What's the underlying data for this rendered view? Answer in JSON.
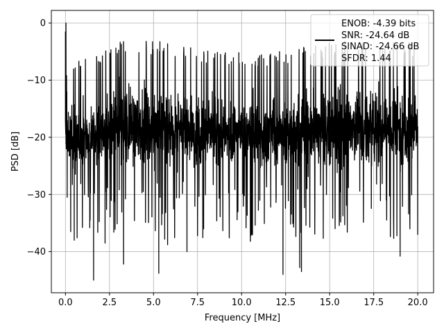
{
  "chart_data": {
    "type": "line",
    "title": "",
    "xlabel": "Frequency [MHz]",
    "ylabel": "PSD [dB]",
    "xlim": [
      -0.8,
      20.9
    ],
    "ylim": [
      -47.2,
      2.2
    ],
    "x_ticks": [
      0.0,
      2.5,
      5.0,
      7.5,
      10.0,
      12.5,
      15.0,
      17.5,
      20.0
    ],
    "x_tick_labels": [
      "0.0",
      "2.5",
      "5.0",
      "7.5",
      "10.0",
      "12.5",
      "15.0",
      "17.5",
      "20.0"
    ],
    "y_ticks": [
      0,
      -10,
      -20,
      -30,
      -40
    ],
    "y_tick_labels": [
      "0",
      "−10",
      "−20",
      "−30",
      "−40"
    ],
    "grid": true,
    "legend": {
      "placement": "top-right",
      "entries": [
        "ENOB: -4.39 bits",
        "SNR: -24.64 dB",
        "SINAD: -24.66 dB",
        "SFDR: 1.44"
      ]
    },
    "series": [
      {
        "color": "#000000",
        "x_range": [
          0.0,
          20.0
        ],
        "notable_points": [
          {
            "x": 0.0,
            "y": -1.5
          },
          {
            "x": 0.03,
            "y": 0.0
          },
          {
            "x": 0.05,
            "y": -22.0
          },
          {
            "x": 0.08,
            "y": -12.0
          },
          {
            "x": 0.1,
            "y": -30.5
          },
          {
            "x": 0.3,
            "y": -36.5
          },
          {
            "x": 0.5,
            "y": -38.0
          },
          {
            "x": 1.6,
            "y": -45.0
          },
          {
            "x": 2.25,
            "y": -38.5
          },
          {
            "x": 3.3,
            "y": -42.2
          },
          {
            "x": 5.3,
            "y": -43.8
          },
          {
            "x": 5.8,
            "y": -38.8
          },
          {
            "x": 6.9,
            "y": -40.0
          },
          {
            "x": 10.5,
            "y": -38.2
          },
          {
            "x": 12.35,
            "y": -44.0
          },
          {
            "x": 13.3,
            "y": -42.8
          },
          {
            "x": 13.4,
            "y": -43.5
          },
          {
            "x": 19.0,
            "y": -40.8
          },
          {
            "x": 20.0,
            "y": -37.0
          }
        ]
      }
    ]
  }
}
